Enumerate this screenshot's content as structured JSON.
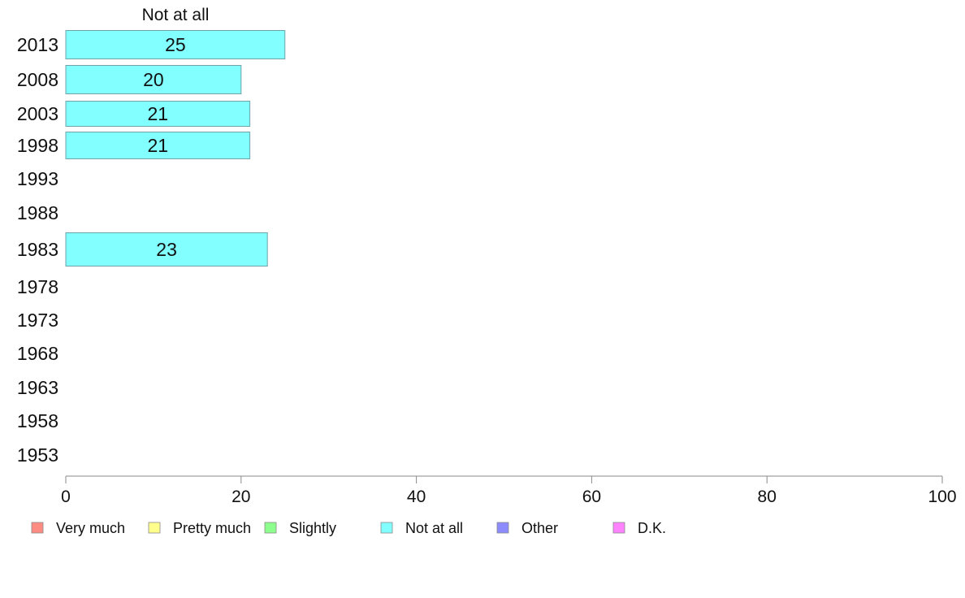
{
  "chart_data": {
    "type": "bar",
    "orientation": "horizontal",
    "series_header": "Not at all",
    "categories": [
      "2013",
      "2008",
      "2003",
      "1998",
      "1993",
      "1988",
      "1983",
      "1978",
      "1973",
      "1968",
      "1963",
      "1958",
      "1953"
    ],
    "series": [
      {
        "name": "Not at all",
        "values": [
          25,
          20,
          21,
          21,
          null,
          null,
          23,
          null,
          null,
          null,
          null,
          null,
          null
        ],
        "labels": [
          "25",
          "20",
          "21",
          "21",
          "",
          "",
          "23",
          "",
          "",
          "",
          "",
          "",
          ""
        ]
      }
    ],
    "xlim": [
      0,
      100
    ],
    "xticks": [
      "0",
      "20",
      "40",
      "60",
      "80",
      "100"
    ],
    "xlabel": "",
    "ylabel": "",
    "grid": false,
    "legend_position": "bottom",
    "legend": [
      {
        "label": "Very much",
        "color": "#ff8c82"
      },
      {
        "label": "Pretty much",
        "color": "#ffff8c"
      },
      {
        "label": "Slightly",
        "color": "#8cff8c"
      },
      {
        "label": "Not at all",
        "color": "#82ffff"
      },
      {
        "label": "Other",
        "color": "#8c8cff"
      },
      {
        "label": "D.K.",
        "color": "#ff82ff"
      }
    ],
    "bar_color": "#82ffff",
    "bar_edge_color": "#6fa3a8"
  }
}
